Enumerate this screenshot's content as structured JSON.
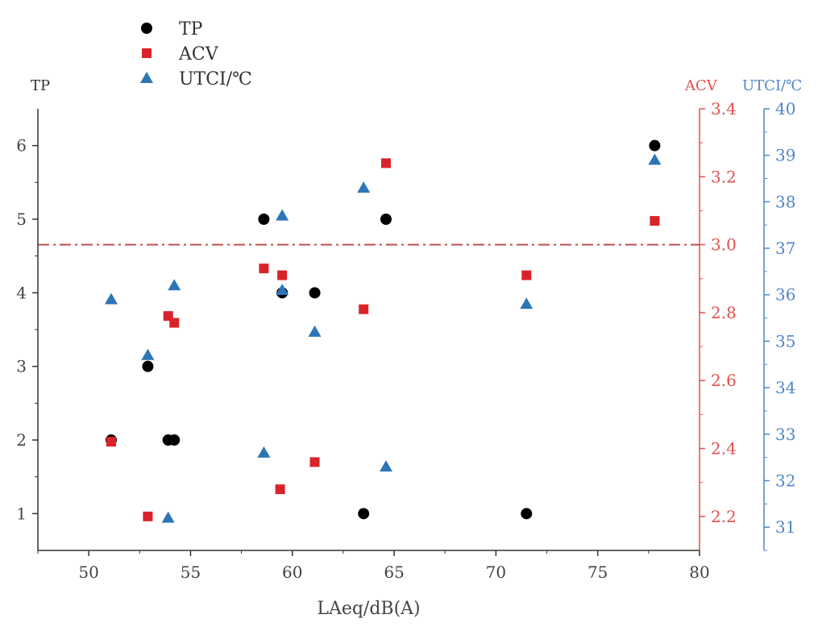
{
  "chart_data": {
    "type": "scatter",
    "xlabel": "LAeq/dB(A)",
    "xlim": [
      47.5,
      80
    ],
    "xticks": [
      50,
      55,
      60,
      65,
      70,
      75,
      80
    ],
    "axes": {
      "tp": {
        "label": "TP",
        "range": [
          0.5,
          6.5
        ],
        "ticks": [
          1,
          2,
          3,
          4,
          5,
          6
        ],
        "decimals": 0,
        "color": "#333333",
        "side": "left"
      },
      "acv": {
        "label": "ACV",
        "range": [
          2.1,
          3.4
        ],
        "ticks": [
          2.2,
          2.4,
          2.6,
          2.8,
          3.0,
          3.2,
          3.4
        ],
        "decimals": 1,
        "color": "#e0504f",
        "side": "right"
      },
      "utci": {
        "label": "UTCI/℃",
        "range": [
          30.5,
          40
        ],
        "ticks": [
          31,
          32,
          33,
          34,
          35,
          36,
          37,
          38,
          39,
          40
        ],
        "decimals": 0,
        "color": "#4f86c6",
        "side": "right"
      }
    },
    "series": [
      {
        "name": "TP",
        "axis": "tp",
        "marker": "circle",
        "color": "#000000",
        "x": [
          51.1,
          52.9,
          53.9,
          54.2,
          58.6,
          59.5,
          61.1,
          63.5,
          64.6,
          71.5,
          77.8
        ],
        "y": [
          2,
          3,
          2,
          2,
          5,
          4,
          4,
          1,
          5,
          1,
          6
        ]
      },
      {
        "name": "ACV",
        "axis": "acv",
        "marker": "square",
        "color": "#d9232a",
        "x": [
          51.1,
          52.9,
          53.9,
          54.2,
          58.6,
          59.4,
          59.5,
          61.1,
          63.5,
          64.6,
          71.5,
          77.8
        ],
        "y": [
          2.42,
          2.2,
          2.79,
          2.77,
          2.93,
          2.28,
          2.91,
          2.36,
          2.81,
          3.24,
          2.91,
          3.07
        ]
      },
      {
        "name": "UTCI/℃",
        "axis": "utci",
        "marker": "triangle",
        "color": "#2e75b6",
        "x": [
          51.1,
          52.9,
          53.9,
          54.2,
          58.6,
          59.5,
          59.5,
          61.1,
          63.5,
          64.6,
          71.5,
          77.8
        ],
        "y": [
          35.9,
          34.7,
          31.2,
          36.2,
          32.6,
          37.7,
          36.1,
          35.2,
          38.3,
          32.3,
          35.8,
          38.9
        ]
      }
    ],
    "reference_line": {
      "axis": "acv",
      "value": 3.0,
      "color": "#c0504d",
      "style": "dash-dot"
    },
    "legend_position": "top-left"
  }
}
